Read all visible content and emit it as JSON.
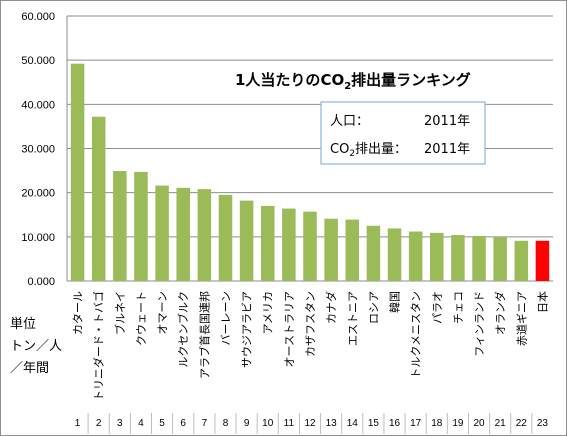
{
  "chart_data": {
    "type": "bar",
    "title": "1人当たりのCO₂排出量ランキング",
    "title_parts": [
      "1人当たりのCO",
      "2",
      "排出量ランキング"
    ],
    "unit_label_lines": [
      "単位",
      "トン／人",
      "／年間"
    ],
    "info_box": {
      "row1_label": "人口：",
      "row1_value": "2011年",
      "row2_label_parts": [
        "CO",
        "2",
        "排出量："
      ],
      "row2_value": "2011年"
    },
    "ylim": [
      0,
      60
    ],
    "yticks": [
      0,
      10,
      20,
      30,
      40,
      50,
      60
    ],
    "ytick_labels": [
      "0.000",
      "10.000",
      "20.000",
      "30.000",
      "40.000",
      "50.000",
      "60.000"
    ],
    "grid": true,
    "categories": [
      "カタール",
      "トリニダード・トバゴ",
      "ブルネイ",
      "クウェート",
      "オマーン",
      "ルクセンブルク",
      "アラブ首長国連邦",
      "バーレーン",
      "サウジアラビア",
      "アメリカ",
      "オーストラリア",
      "カザフスタン",
      "カナダ",
      "エストニア",
      "ロシア",
      "韓国",
      "トルクメニスタン",
      "パラオ",
      "チェコ",
      "フィンランド",
      "オランダ",
      "赤道ギニア",
      "日本"
    ],
    "ranks": [
      "1",
      "2",
      "3",
      "4",
      "5",
      "6",
      "7",
      "8",
      "9",
      "10",
      "11",
      "12",
      "13",
      "14",
      "15",
      "16",
      "17",
      "18",
      "19",
      "20",
      "21",
      "22",
      "23"
    ],
    "values": [
      49.2,
      37.2,
      24.9,
      24.7,
      21.6,
      21.1,
      20.8,
      19.5,
      18.2,
      17.0,
      16.4,
      15.7,
      14.1,
      13.9,
      12.5,
      11.9,
      11.2,
      10.9,
      10.4,
      10.2,
      9.9,
      9.1,
      9.1
    ],
    "colors": {
      "bar": "#9bbb59",
      "highlight": "#ff0000",
      "grid": "#8e8e8e",
      "axis": "#8e8e8e",
      "box_border": "#8eb4e3"
    },
    "highlight_index": 22
  }
}
